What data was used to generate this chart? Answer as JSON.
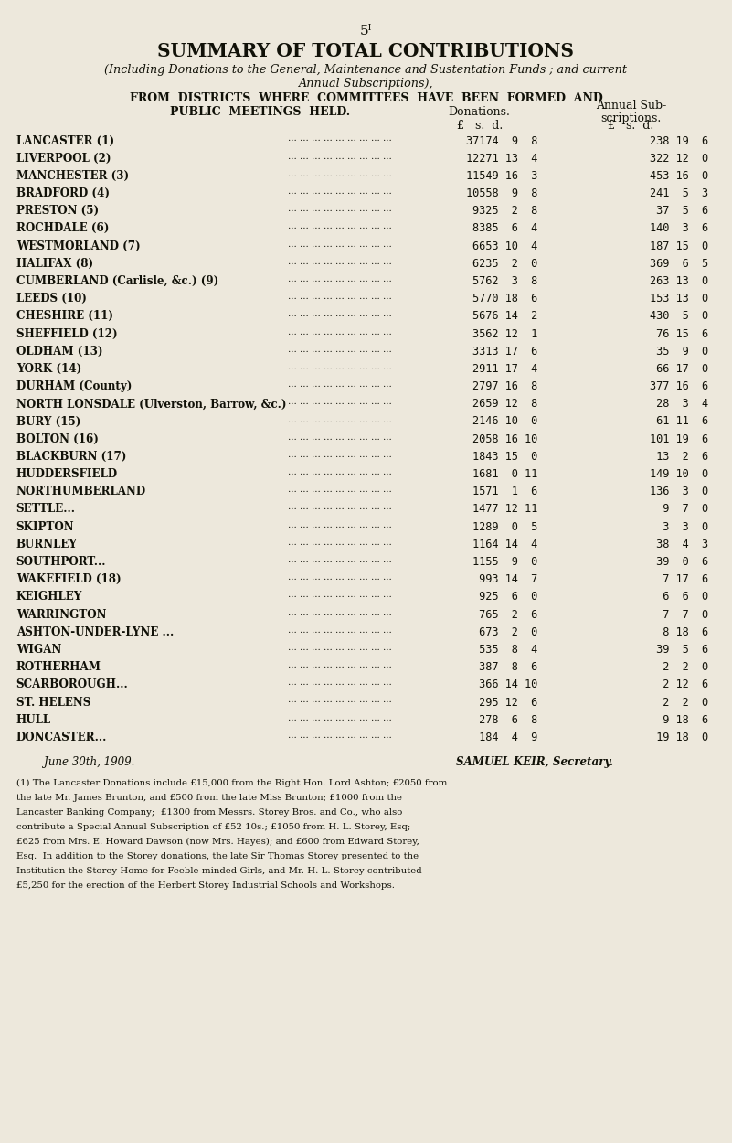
{
  "page_num": "5ᴵ",
  "title": "SUMMARY OF TOTAL CONTRIBUTIONS",
  "subtitle1": "(Including Donations to the General, Maintenance and Sustentation Funds ; and current",
  "subtitle2": "Annual Subscriptions),",
  "header1": "FROM  DISTRICTS  WHERE  COMMITTEES  HAVE  BEEN  FORMED  AND",
  "header2": "PUBLIC  MEETINGS  HELD.",
  "col_header_donations": "Donations.",
  "col_header_subs1": "Annual Sub-",
  "col_header_subs2": "scriptions.",
  "col_pounds": "£   s.  d.",
  "rows": [
    [
      "LANCASTER (1)",
      "37174  9  8",
      "238 19  6"
    ],
    [
      "LIVERPOOL (2)",
      "12271 13  4",
      "322 12  0"
    ],
    [
      "MANCHESTER (3)",
      "11549 16  3",
      "453 16  0"
    ],
    [
      "BRADFORD (4)",
      "10558  9  8",
      "241  5  3"
    ],
    [
      "PRESTON (5)",
      "9325  2  8",
      " 37  5  6"
    ],
    [
      "ROCHDALE (6)",
      "8385  6  4",
      "140  3  6"
    ],
    [
      "WESTMORLAND (7)",
      "6653 10  4",
      "187 15  0"
    ],
    [
      "HALIFAX (8)",
      "6235  2  0",
      "369  6  5"
    ],
    [
      "CUMBERLAND (Carlisle, &c.) (9)",
      "5762  3  8",
      "263 13  0"
    ],
    [
      "LEEDS (10)",
      "5770 18  6",
      "153 13  0"
    ],
    [
      "CHESHIRE (11)",
      "5676 14  2",
      "430  5  0"
    ],
    [
      "SHEFFIELD (12)",
      "3562 12  1",
      " 76 15  6"
    ],
    [
      "OLDHAM (13)",
      "3313 17  6",
      " 35  9  0"
    ],
    [
      "YORK (14)",
      "2911 17  4",
      " 66 17  0"
    ],
    [
      "DURHAM (County)",
      "2797 16  8",
      "377 16  6"
    ],
    [
      "NORTH LONSDALE (Ulverston, Barrow, &c.)",
      "2659 12  8",
      " 28  3  4"
    ],
    [
      "BURY (15)",
      "2146 10  0",
      " 61 11  6"
    ],
    [
      "BOLTON (16)",
      "2058 16 10",
      "101 19  6"
    ],
    [
      "BLACKBURN (17)",
      "1843 15  0",
      " 13  2  6"
    ],
    [
      "HUDDERSFIELD",
      "1681  0 11",
      "149 10  0"
    ],
    [
      "NORTHUMBERLAND",
      "1571  1  6",
      "136  3  0"
    ],
    [
      "SETTLE...",
      "1477 12 11",
      "  9  7  0"
    ],
    [
      "SKIPTON",
      "1289  0  5",
      "  3  3  0"
    ],
    [
      "BURNLEY",
      "1164 14  4",
      " 38  4  3"
    ],
    [
      "SOUTHPORT...",
      "1155  9  0",
      " 39  0  6"
    ],
    [
      "WAKEFIELD (18)",
      " 993 14  7",
      "  7 17  6"
    ],
    [
      "KEIGHLEY",
      " 925  6  0",
      "  6  6  0"
    ],
    [
      "WARRINGTON",
      " 765  2  6",
      "  7  7  0"
    ],
    [
      "ASHTON-UNDER-LYNE ...",
      " 673  2  0",
      "  8 18  6"
    ],
    [
      "WIGAN",
      " 535  8  4",
      " 39  5  6"
    ],
    [
      "ROTHERHAM",
      " 387  8  6",
      "  2  2  0"
    ],
    [
      "SCARBOROUGH...",
      " 366 14 10",
      "  2 12  6"
    ],
    [
      "ST. HELENS",
      " 295 12  6",
      "  2  2  0"
    ],
    [
      "HULL",
      " 278  6  8",
      "  9 18  6"
    ],
    [
      "DONCASTER...",
      " 184  4  9",
      " 19 18  0"
    ]
  ],
  "date_line": "June 30th, 1909.",
  "secretary": "SAMUEL KEIR, Secretary.",
  "footnote_lines": [
    "(1) The Lancaster Donations include £15,000 from the Right Hon. Lord Ashton; £2050 from",
    "the late Mr. James Brunton, and £500 from the late Miss Brunton; £1000 from the",
    "Lancaster Banking Company;  £1300 from Messrs. Storey Bros. and Co., who also",
    "contribute a Special Annual Subscription of £52 10s.; £1050 from H. L. Storey, Esq;",
    "£625 from Mrs. E. Howard Dawson (now Mrs. Hayes); and £600 from Edward Storey,",
    "Esq.  In addition to the Storey donations, the late Sir Thomas Storey presented to the",
    "Institution the Storey Home for Feeble-minded Girls, and Mr. H. L. Storey contributed",
    "£5,250 for the erection of the Herbert Storey Industrial Schools and Workshops."
  ],
  "bg_color": "#ede8dc",
  "text_color": "#111108"
}
